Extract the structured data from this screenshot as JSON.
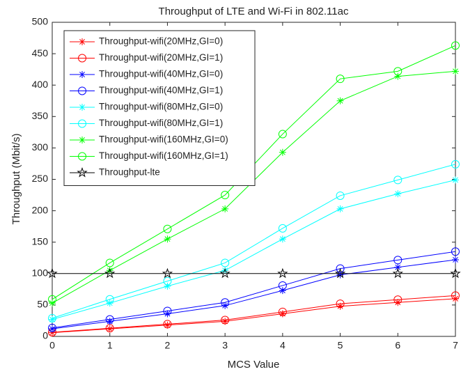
{
  "chart_data": {
    "type": "line",
    "title": "Throughput of LTE and Wi-Fi in 802.11ac",
    "x_label": "MCS Value",
    "y_label": "Throughput (Mbit/s)",
    "x": [
      0,
      1,
      2,
      3,
      4,
      5,
      6,
      7
    ],
    "xlim": [
      0,
      7
    ],
    "xticks": [
      0,
      1,
      2,
      3,
      4,
      5,
      6,
      7
    ],
    "ylim": [
      0,
      500
    ],
    "yticks": [
      0,
      50,
      100,
      150,
      200,
      250,
      300,
      350,
      400,
      450,
      500
    ],
    "legend": "upper left",
    "series": [
      {
        "name": "Throughput-wifi(20MHz,GI=0)",
        "color": "#ff0000",
        "marker": "star",
        "values": [
          6,
          12,
          18,
          24,
          36,
          48,
          54,
          60
        ]
      },
      {
        "name": "Throughput-wifi(20MHz,GI=1)",
        "color": "#ff0000",
        "marker": "circle",
        "values": [
          6.5,
          13,
          19.5,
          26,
          39,
          52,
          58.5,
          65
        ]
      },
      {
        "name": "Throughput-wifi(40MHz,GI=0)",
        "color": "#0000ff",
        "marker": "star",
        "values": [
          12,
          24,
          36,
          49,
          73,
          98,
          110,
          122
        ]
      },
      {
        "name": "Throughput-wifi(40MHz,GI=1)",
        "color": "#0000ff",
        "marker": "circle",
        "values": [
          13.5,
          27,
          40.5,
          54,
          81,
          108,
          121.5,
          135
        ]
      },
      {
        "name": "Throughput-wifi(80MHz,GI=0)",
        "color": "#00ffff",
        "marker": "star",
        "values": [
          27,
          53,
          80,
          105,
          155,
          203,
          227,
          249
        ]
      },
      {
        "name": "Throughput-wifi(80MHz,GI=1)",
        "color": "#00ffff",
        "marker": "circle",
        "values": [
          29,
          59,
          88,
          117,
          172,
          224,
          249,
          274
        ]
      },
      {
        "name": "Throughput-wifi(160MHz,GI=0)",
        "color": "#00ff00",
        "marker": "star",
        "values": [
          53,
          105,
          155,
          203,
          293,
          375,
          414,
          422
        ]
      },
      {
        "name": "Throughput-wifi(160MHz,GI=1)",
        "color": "#00ff00",
        "marker": "circle",
        "values": [
          59,
          117,
          171,
          225,
          322,
          410,
          422,
          463
        ]
      },
      {
        "name": "Throughput-lte",
        "color": "#000000",
        "marker": "pentagram",
        "values": [
          100,
          100,
          100,
          100,
          100,
          100,
          100,
          100
        ]
      }
    ]
  }
}
